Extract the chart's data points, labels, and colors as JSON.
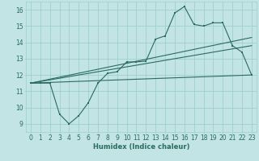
{
  "xlabel": "Humidex (Indice chaleur)",
  "bg_color": "#c2e4e4",
  "line_color": "#2a6b5e",
  "grid_color": "#9fcece",
  "xlim": [
    -0.5,
    23.5
  ],
  "ylim": [
    8.5,
    16.5
  ],
  "xticks": [
    0,
    1,
    2,
    3,
    4,
    5,
    6,
    7,
    8,
    9,
    10,
    11,
    12,
    13,
    14,
    15,
    16,
    17,
    18,
    19,
    20,
    21,
    22,
    23
  ],
  "yticks": [
    9,
    10,
    11,
    12,
    13,
    14,
    15,
    16
  ],
  "main_line_x": [
    0,
    1,
    2,
    3,
    4,
    5,
    6,
    7,
    8,
    9,
    10,
    11,
    12,
    13,
    14,
    15,
    16,
    17,
    18,
    19,
    20,
    21,
    22,
    23
  ],
  "main_line_y": [
    11.5,
    11.5,
    11.5,
    9.6,
    9.0,
    9.5,
    10.3,
    11.5,
    12.1,
    12.2,
    12.8,
    12.8,
    12.85,
    14.2,
    14.4,
    15.8,
    16.2,
    15.1,
    15.0,
    15.2,
    15.2,
    13.8,
    13.4,
    12.0
  ],
  "line2_x": [
    0,
    23
  ],
  "line2_y": [
    11.5,
    13.8
  ],
  "line3_x": [
    0,
    23
  ],
  "line3_y": [
    11.5,
    12.0
  ],
  "line4_x": [
    0,
    23
  ],
  "line4_y": [
    11.5,
    14.3
  ],
  "xlabel_fontsize": 6,
  "tick_fontsize": 5.5,
  "marker_size": 2.0,
  "line_width": 0.8
}
